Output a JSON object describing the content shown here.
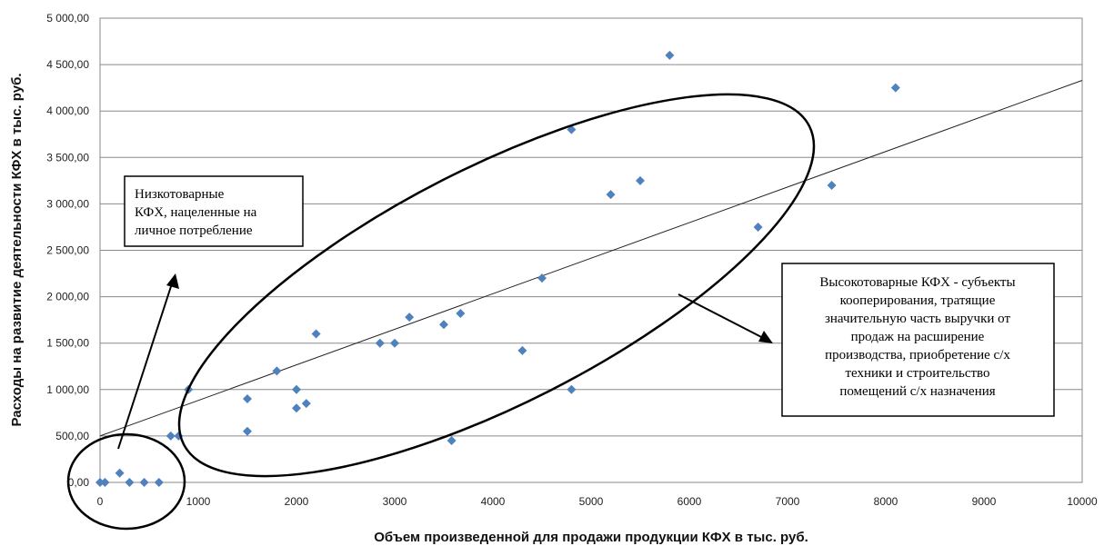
{
  "chart_data": {
    "type": "scatter",
    "xlabel": "Объем произведенной для продажи продукции КФХ в тыс. руб.",
    "ylabel": "Расходы на развитие деятельности КФХ в тыс. руб.",
    "xlim": [
      0,
      10000
    ],
    "ylim": [
      0,
      5000
    ],
    "x_ticks": [
      "0",
      "1000",
      "2000",
      "3000",
      "4000",
      "5000",
      "6000",
      "7000",
      "8000",
      "9000",
      "10000"
    ],
    "y_ticks": [
      "0,00",
      "500,00",
      "1 000,00",
      "1 500,00",
      "2 000,00",
      "2 500,00",
      "3 000,00",
      "3 500,00",
      "4 000,00",
      "4 500,00",
      "5 000,00"
    ],
    "grid": true,
    "marker": "diamond",
    "marker_color": "#4f81bd",
    "points": [
      {
        "x": 0,
        "y": 0
      },
      {
        "x": 50,
        "y": 0
      },
      {
        "x": 200,
        "y": 100
      },
      {
        "x": 300,
        "y": 0
      },
      {
        "x": 450,
        "y": 0
      },
      {
        "x": 600,
        "y": 0
      },
      {
        "x": 720,
        "y": 500
      },
      {
        "x": 800,
        "y": 500
      },
      {
        "x": 900,
        "y": 1000
      },
      {
        "x": 1500,
        "y": 900
      },
      {
        "x": 1500,
        "y": 550
      },
      {
        "x": 1800,
        "y": 1200
      },
      {
        "x": 2000,
        "y": 1000
      },
      {
        "x": 2000,
        "y": 800
      },
      {
        "x": 2100,
        "y": 850
      },
      {
        "x": 2200,
        "y": 1600
      },
      {
        "x": 2850,
        "y": 1500
      },
      {
        "x": 3000,
        "y": 1500
      },
      {
        "x": 3150,
        "y": 1780
      },
      {
        "x": 3500,
        "y": 1700
      },
      {
        "x": 3580,
        "y": 450
      },
      {
        "x": 3670,
        "y": 1820
      },
      {
        "x": 4300,
        "y": 1420
      },
      {
        "x": 4500,
        "y": 2200
      },
      {
        "x": 4800,
        "y": 3800
      },
      {
        "x": 4800,
        "y": 1000
      },
      {
        "x": 5200,
        "y": 3100
      },
      {
        "x": 5500,
        "y": 3250
      },
      {
        "x": 5800,
        "y": 4600
      },
      {
        "x": 6700,
        "y": 2750
      },
      {
        "x": 7450,
        "y": 3200
      },
      {
        "x": 8100,
        "y": 4250
      }
    ],
    "trendline": {
      "type": "linear",
      "x": [
        0,
        10000
      ],
      "y": [
        500,
        4330
      ]
    },
    "annotations": [
      {
        "id": "low",
        "lines": [
          "Низкотоварные",
          "КФХ, нацеленные на",
          "личное потребление"
        ]
      },
      {
        "id": "high",
        "lines": [
          "Высокотоварные КФХ - субъекты",
          "кооперирования,  тратящие",
          "значительную часть выручки от",
          "продаж на  расширение",
          "производства, приобретение с/х",
          "техники и строительство",
          "помещений с/х назначения"
        ]
      }
    ]
  }
}
